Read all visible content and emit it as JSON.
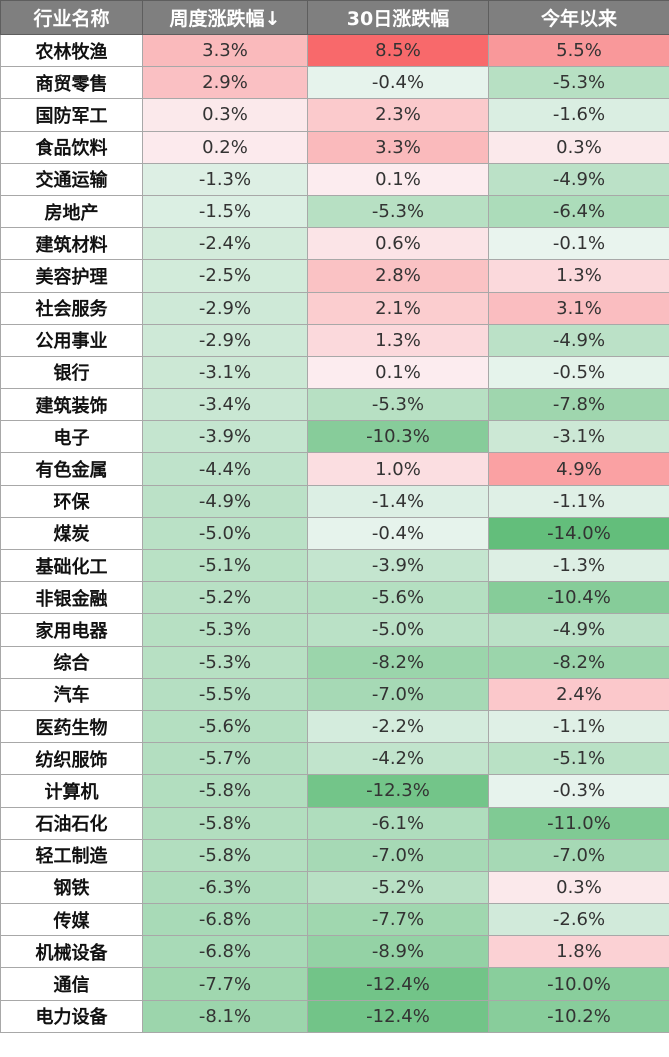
{
  "columns": [
    "行业名称",
    "周度涨跌幅↓",
    "30日涨跌幅",
    "今年以来"
  ],
  "rows": [
    {
      "name": "农林牧渔",
      "week": 3.3,
      "d30": 8.5,
      "ytd": 5.5
    },
    {
      "name": "商贸零售",
      "week": 2.9,
      "d30": -0.4,
      "ytd": -5.3
    },
    {
      "name": "国防军工",
      "week": 0.3,
      "d30": 2.3,
      "ytd": -1.6
    },
    {
      "name": "食品饮料",
      "week": 0.2,
      "d30": 3.3,
      "ytd": 0.3
    },
    {
      "name": "交通运输",
      "week": -1.3,
      "d30": 0.1,
      "ytd": -4.9
    },
    {
      "name": "房地产",
      "week": -1.5,
      "d30": -5.3,
      "ytd": -6.4
    },
    {
      "name": "建筑材料",
      "week": -2.4,
      "d30": 0.6,
      "ytd": -0.1
    },
    {
      "name": "美容护理",
      "week": -2.5,
      "d30": 2.8,
      "ytd": 1.3
    },
    {
      "name": "社会服务",
      "week": -2.9,
      "d30": 2.1,
      "ytd": 3.1
    },
    {
      "name": "公用事业",
      "week": -2.9,
      "d30": 1.3,
      "ytd": -4.9
    },
    {
      "name": "银行",
      "week": -3.1,
      "d30": 0.1,
      "ytd": -0.5
    },
    {
      "name": "建筑装饰",
      "week": -3.4,
      "d30": -5.3,
      "ytd": -7.8
    },
    {
      "name": "电子",
      "week": -3.9,
      "d30": -10.3,
      "ytd": -3.1
    },
    {
      "name": "有色金属",
      "week": -4.4,
      "d30": 1.0,
      "ytd": 4.9
    },
    {
      "name": "环保",
      "week": -4.9,
      "d30": -1.4,
      "ytd": -1.1
    },
    {
      "name": "煤炭",
      "week": -5.0,
      "d30": -0.4,
      "ytd": -14.0
    },
    {
      "name": "基础化工",
      "week": -5.1,
      "d30": -3.9,
      "ytd": -1.3
    },
    {
      "name": "非银金融",
      "week": -5.2,
      "d30": -5.6,
      "ytd": -10.4
    },
    {
      "name": "家用电器",
      "week": -5.3,
      "d30": -5.0,
      "ytd": -4.9
    },
    {
      "name": "综合",
      "week": -5.3,
      "d30": -8.2,
      "ytd": -8.2
    },
    {
      "name": "汽车",
      "week": -5.5,
      "d30": -7.0,
      "ytd": 2.4
    },
    {
      "name": "医药生物",
      "week": -5.6,
      "d30": -2.2,
      "ytd": -1.1
    },
    {
      "name": "纺织服饰",
      "week": -5.7,
      "d30": -4.2,
      "ytd": -5.1
    },
    {
      "name": "计算机",
      "week": -5.8,
      "d30": -12.3,
      "ytd": -0.3
    },
    {
      "name": "石油石化",
      "week": -5.8,
      "d30": -6.1,
      "ytd": -11.0
    },
    {
      "name": "轻工制造",
      "week": -5.8,
      "d30": -7.0,
      "ytd": -7.0
    },
    {
      "name": "钢铁",
      "week": -6.3,
      "d30": -5.2,
      "ytd": 0.3
    },
    {
      "name": "传媒",
      "week": -6.8,
      "d30": -7.7,
      "ytd": -2.6
    },
    {
      "name": "机械设备",
      "week": -6.8,
      "d30": -8.9,
      "ytd": 1.8
    },
    {
      "name": "通信",
      "week": -7.7,
      "d30": -12.4,
      "ytd": -10.0
    },
    {
      "name": "电力设备",
      "week": -8.1,
      "d30": -12.4,
      "ytd": -10.2
    }
  ],
  "colors": {
    "header_bg": "#7f7f7f",
    "positive": "#f8696b",
    "negative": "#63be7b",
    "neutral": "#fcfcff"
  }
}
